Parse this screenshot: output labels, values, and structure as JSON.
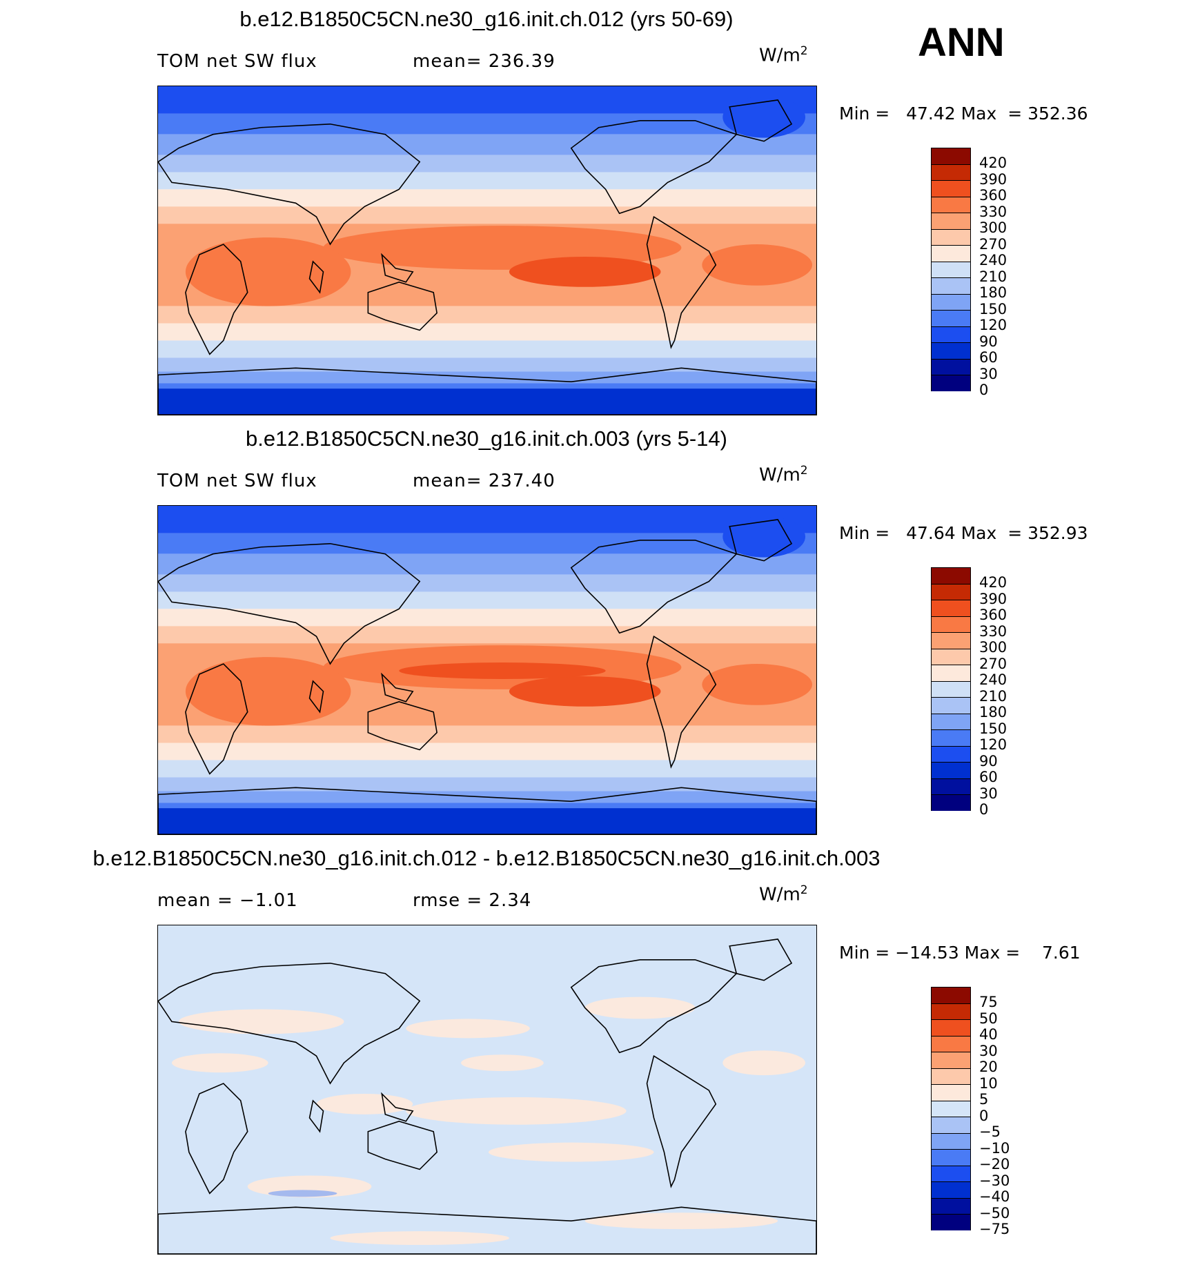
{
  "season_label": "ANN",
  "colors": {
    "abs": [
      "#00007f",
      "#00109f",
      "#0030d0",
      "#1c4ef0",
      "#4a7bf5",
      "#7fa4f5",
      "#aac3f5",
      "#cfe0f6",
      "#fde9dc",
      "#fdc9ab",
      "#fba173",
      "#f97944",
      "#ef501f",
      "#c52a04",
      "#8c0a00"
    ],
    "diff": [
      "#00007f",
      "#00109f",
      "#0030d0",
      "#1c4ef0",
      "#4a7bf5",
      "#7fa4f5",
      "#aac3f5",
      "#d5e5f8",
      "#fde9dc",
      "#fdc9ab",
      "#fba173",
      "#f97944",
      "#ef501f",
      "#c52a04",
      "#8c0a00"
    ],
    "coast": "#000000"
  },
  "panels": [
    {
      "title": "b.e12.B1850C5CN.ne30_g16.init.ch.012 (yrs 50-69)",
      "left_label": "TOM net SW flux",
      "center_label": "mean= 236.39",
      "units": "W/m",
      "units_sup": "2",
      "minmax": "Min =   47.42 Max  = 352.36",
      "legend_ticks": [
        "420",
        "390",
        "360",
        "330",
        "300",
        "270",
        "240",
        "210",
        "180",
        "150",
        "120",
        "90",
        "60",
        "30",
        "0"
      ],
      "variant": "abs1"
    },
    {
      "title": "b.e12.B1850C5CN.ne30_g16.init.ch.003 (yrs 5-14)",
      "left_label": "TOM net SW flux",
      "center_label": "mean= 237.40",
      "units": "W/m",
      "units_sup": "2",
      "minmax": "Min =   47.64 Max  = 352.93",
      "legend_ticks": [
        "420",
        "390",
        "360",
        "330",
        "300",
        "270",
        "240",
        "210",
        "180",
        "150",
        "120",
        "90",
        "60",
        "30",
        "0"
      ],
      "variant": "abs2"
    },
    {
      "title": "b.e12.B1850C5CN.ne30_g16.init.ch.012 - b.e12.B1850C5CN.ne30_g16.init.ch.003",
      "left_label": "mean =   −1.01",
      "center_label": "rmse =    2.34",
      "units": "W/m",
      "units_sup": "2",
      "minmax": "Min = −14.53 Max =    7.61",
      "legend_ticks": [
        "75",
        "50",
        "40",
        "30",
        "20",
        "10",
        "5",
        "0",
        "−5",
        "−10",
        "−20",
        "−30",
        "−40",
        "−50",
        "−75"
      ],
      "variant": "diff"
    }
  ]
}
